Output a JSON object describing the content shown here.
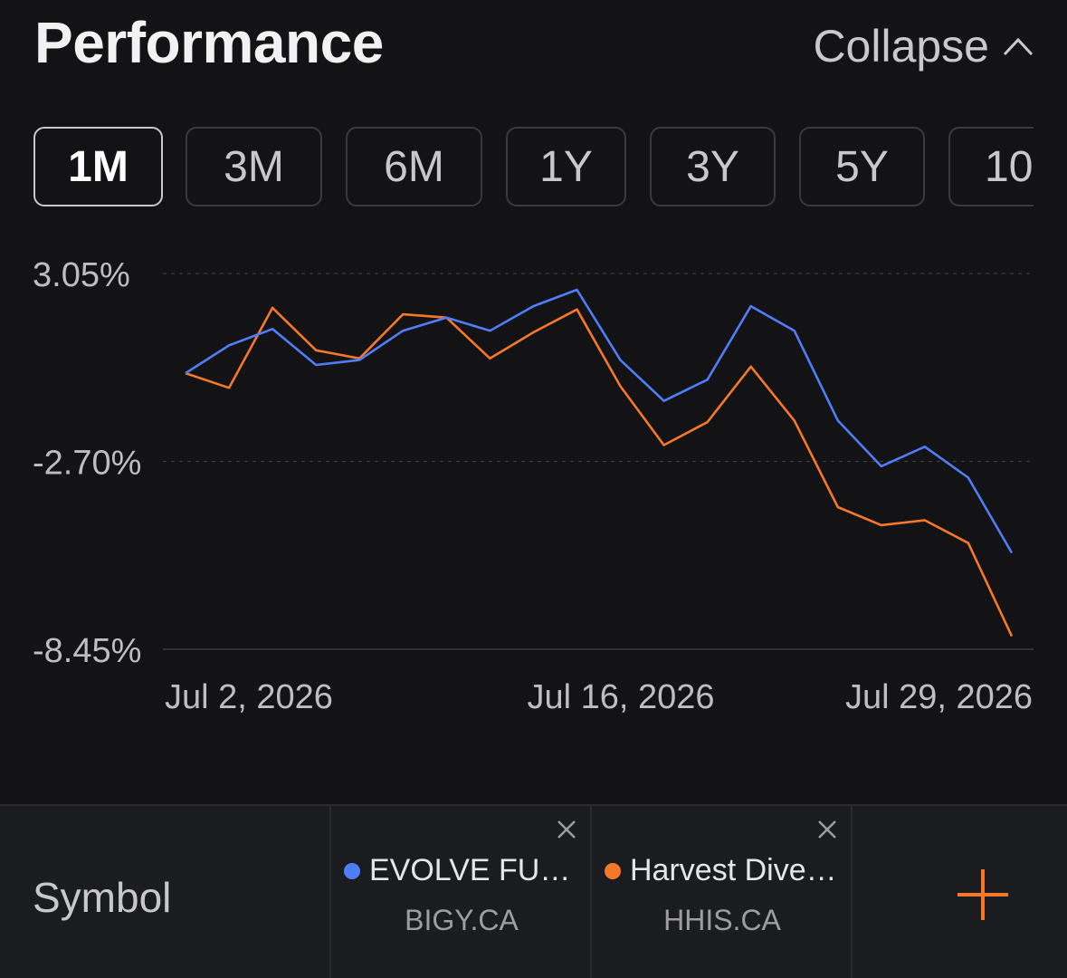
{
  "header": {
    "title": "Performance",
    "collapse_label": "Collapse",
    "collapse_icon": "chevron-up-icon"
  },
  "periods": [
    {
      "label": "1M",
      "active": true
    },
    {
      "label": "3M",
      "active": false
    },
    {
      "label": "6M",
      "active": false
    },
    {
      "label": "1Y",
      "active": false
    },
    {
      "label": "3Y",
      "active": false
    },
    {
      "label": "5Y",
      "active": false
    },
    {
      "label": "10",
      "active": false
    }
  ],
  "chart_data": {
    "type": "line",
    "title": "",
    "xlabel": "",
    "ylabel": "",
    "y_ticks": [
      3.05,
      -2.7,
      -8.45
    ],
    "y_tick_labels": [
      "3.05%",
      "-2.70%",
      "-8.45%"
    ],
    "ylim": [
      -8.45,
      3.05
    ],
    "x_tick_labels": [
      "Jul 2, 2026",
      "Jul 16, 2026",
      "Jul 29, 2026"
    ],
    "x": [
      "2026-07-02",
      "2026-07-03",
      "2026-07-06",
      "2026-07-07",
      "2026-07-08",
      "2026-07-09",
      "2026-07-10",
      "2026-07-13",
      "2026-07-14",
      "2026-07-15",
      "2026-07-16",
      "2026-07-17",
      "2026-07-20",
      "2026-07-21",
      "2026-07-22",
      "2026-07-23",
      "2026-07-24",
      "2026-07-27",
      "2026-07-28",
      "2026-07-29"
    ],
    "series": [
      {
        "color": "#4f7cf7",
        "values": [
          0.0,
          0.85,
          1.35,
          0.25,
          0.4,
          1.3,
          1.7,
          1.3,
          2.05,
          2.55,
          0.4,
          -0.85,
          -0.2,
          2.05,
          1.3,
          -1.45,
          -2.85,
          -2.25,
          -3.2,
          -5.5
        ]
      },
      {
        "color": "#f5782a",
        "values": [
          0.0,
          -0.45,
          2.0,
          0.7,
          0.45,
          1.8,
          1.7,
          0.45,
          1.25,
          1.95,
          -0.4,
          -2.2,
          -1.5,
          0.2,
          -1.45,
          -4.1,
          -4.65,
          -4.5,
          -5.2,
          -8.05
        ]
      }
    ],
    "grid": true
  },
  "symbols": {
    "label": "Symbol",
    "items": [
      {
        "name": "EVOLVE FUN…",
        "ticker": "BIGY.CA",
        "color": "#4f7cf7"
      },
      {
        "name": "Harvest Diver…",
        "ticker": "HHIS.CA",
        "color": "#f5782a"
      }
    ],
    "add_icon": "plus-icon",
    "add_color": "#f5782a"
  }
}
